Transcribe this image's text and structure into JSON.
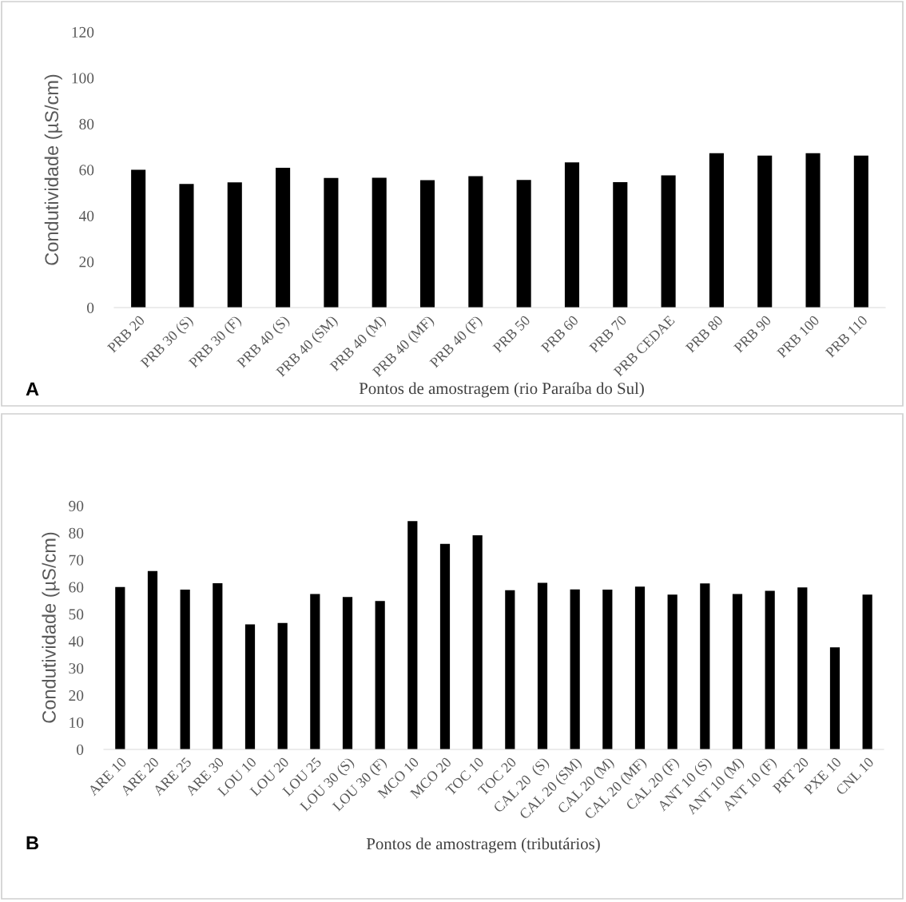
{
  "chart_data": [
    {
      "type": "bar",
      "xlabel": "Pontos de amostragem (rio Paraíba do Sul)",
      "ylabel": "Condutividade (µS/cm)",
      "annotations": [
        "A"
      ],
      "categories": [
        "PRB 20",
        "PRB 30 (S)",
        "PRB 30 (F)",
        "PRB 40 (S)",
        "PRB 40 (SM)",
        "PRB 40 (M)",
        "PRB 40 (MF)",
        "PRB 40 (F)",
        "PRB 50",
        "PRB 60",
        "PRB 70",
        "PRB CEDAE",
        "PRB 80",
        "PRB 90",
        "PRB 100",
        "PRB 110"
      ],
      "values": [
        60,
        53.8,
        54.5,
        60.9,
        56.4,
        56.5,
        55.5,
        57.2,
        55.6,
        63.2,
        54.6,
        57.6,
        67.2,
        66.2,
        67.2,
        66.2
      ],
      "color": "#000000",
      "ylim": [
        0,
        120
      ],
      "yticks": [
        0,
        20,
        40,
        60,
        80,
        100,
        120
      ],
      "grid": false
    },
    {
      "type": "bar",
      "xlabel": "Pontos de amostragem (tributários)",
      "ylabel": "Condutividade (µS/cm)",
      "annotations": [
        "B"
      ],
      "categories": [
        "ARE 10",
        "ARE 20",
        "ARE 25",
        "ARE 30",
        "LOU 10",
        "LOU 20",
        "LOU 25",
        "LOU 30 (S)",
        "LOU 30 (F)",
        "MCO 10",
        "MCO 20",
        "TOC 10",
        "TOC 20",
        "CAL 20  (S)",
        "CAL 20 (SM)",
        "CAL 20 (M)",
        "CAL 20 (MF)",
        "CAL 20 (F)",
        "ANT 10 (S)",
        "ANT 10 (M)",
        "ANT 10 (F)",
        "PRT 20",
        "PXE 10",
        "CNL 10"
      ],
      "values": [
        60,
        65.9,
        59,
        61.4,
        46.2,
        46.7,
        57.4,
        56.3,
        54.8,
        84.3,
        75.9,
        79.1,
        58.8,
        61.5,
        59.1,
        59,
        60.1,
        57.2,
        61.3,
        57.4,
        58.6,
        59.8,
        37.7,
        57.2
      ],
      "color": "#000000",
      "ylim": [
        0,
        90
      ],
      "yticks": [
        0,
        10,
        20,
        30,
        40,
        50,
        60,
        70,
        80,
        90
      ],
      "grid": false
    }
  ]
}
